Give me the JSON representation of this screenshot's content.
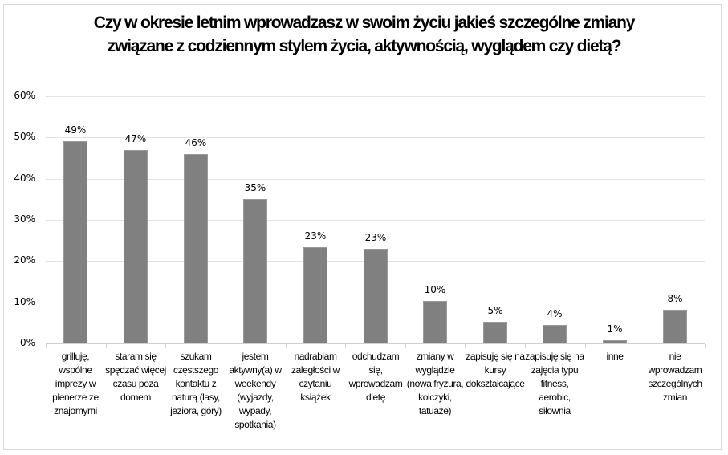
{
  "chart_data": {
    "type": "bar",
    "title": "Czy w okresie letnim wprowadzasz w swoim życiu jakieś szczególne zmiany związane z codziennym stylem życia, aktywnością, wyglądem czy dietą?",
    "title_lines": [
      "Czy w okresie letnim wprowadzasz w swoim życiu jakieś szczególne zmiany",
      "związane z codziennym stylem życia, aktywnością, wyglądem czy dietą?"
    ],
    "xlabel": "",
    "ylabel": "",
    "ylim": [
      0,
      60
    ],
    "yticks": [
      "0%",
      "10%",
      "20%",
      "30%",
      "40%",
      "50%",
      "60%"
    ],
    "grid": true,
    "legend": null,
    "bar_color": "#808080",
    "categories": [
      "grilluję, wspólne imprezy w plenerze ze znajomymi",
      "staram się spędzać więcej czasu poza domem",
      "szukam częstszego kontaktu z naturą (lasy, jeziora, góry)",
      "jestem aktywny(a) w weekendy (wyjazdy, wypady, spotkania)",
      "nadrabiam zaległości w czytaniu książek",
      "odchudzam się, wprowadzam dietę",
      "zmiany w wyglądzie (nowa fryzura, kolczyki, tatuaże)",
      "zapisuję się na kursy dokształcające",
      "zapisuję się na zajęcia typu fitness, aerobic, siłownia",
      "inne",
      "nie wprowadzam szczególnych zmian"
    ],
    "category_lines": [
      "grilluję,\nwspólne\nimprezy w\nplenerze ze\nznajomymi",
      "staram się\nspędzać więcej\nczasu poza\ndomem",
      "szukam\nczęstszego\nkontaktu z\nnaturą (lasy,\njeziora, góry)",
      "jestem\naktywny(a) w\nweekendy\n(wyjazdy,\nwypady,\nspotkania)",
      "nadrabiam\nzaległości w\nczytaniu\nksiążek",
      "odchudzam\nsię,\nwprowadzam\ndietę",
      "zmiany w\nwyglądzie\n(nowa fryzura,\nkolczyki,\ntatuaże)",
      "zapisuję się na\nkursy\ndokształcające",
      "zapisuję się na\nzajęcia typu\nfitness,\naerobic,\nsiłownia",
      "inne",
      "nie\nwprowadzam\nszczególnych\nzmian"
    ],
    "values": [
      49,
      47,
      46,
      35,
      23.4,
      23,
      10.4,
      5.2,
      4.4,
      0.7,
      8.2
    ],
    "data_labels": [
      "49%",
      "47%",
      "46%",
      "35%",
      "23%",
      "23%",
      "10%",
      "5%",
      "4%",
      "1%",
      "8%"
    ]
  }
}
